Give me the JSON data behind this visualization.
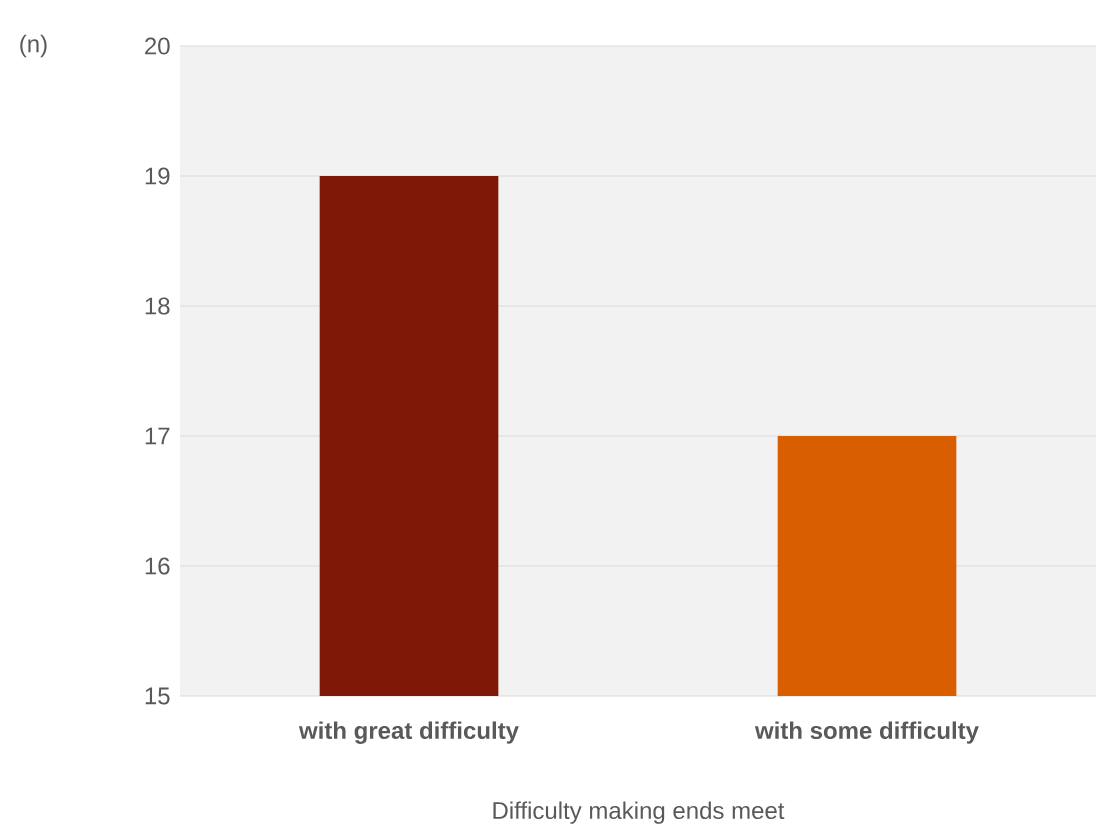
{
  "chart_data": {
    "type": "bar",
    "ylabel": "(n)",
    "xlabel": "Difficulty making ends meet",
    "categories": [
      "with great difficulty",
      "with some difficulty"
    ],
    "values": [
      19,
      17
    ],
    "colors": [
      "#7f1907",
      "#d95e00"
    ],
    "ylim": [
      15,
      20
    ],
    "yticks": [
      15,
      16,
      17,
      18,
      19,
      20
    ],
    "grid": "y"
  }
}
